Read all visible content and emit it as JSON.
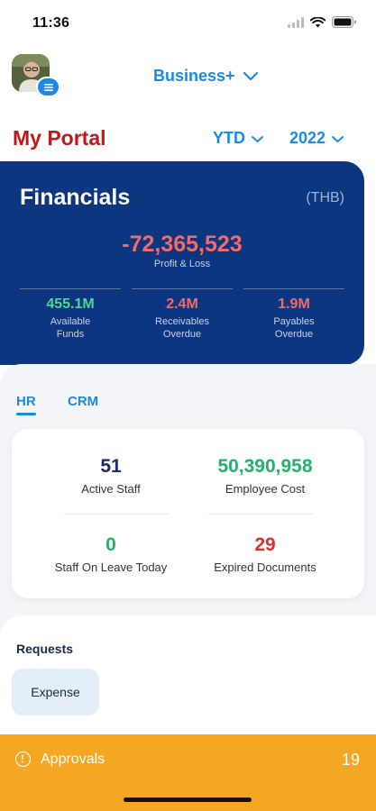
{
  "status_bar": {
    "time": "11:36"
  },
  "header": {
    "business_label": "Business+",
    "portal_title": "My Portal",
    "period": "YTD",
    "year": "2022"
  },
  "financials": {
    "title": "Financials",
    "currency": "(THB)",
    "profit_loss": {
      "value": "-72,365,523",
      "label": "Profit & Loss"
    },
    "metrics": [
      {
        "value": "455.1M",
        "label_line1": "Available",
        "label_line2": "Funds",
        "color": "#4ad991"
      },
      {
        "value": "2.4M",
        "label_line1": "Receivables",
        "label_line2": "Overdue",
        "color": "#f26a6a"
      },
      {
        "value": "1.9M",
        "label_line1": "Payables",
        "label_line2": "Overdue",
        "color": "#f26a6a"
      }
    ]
  },
  "tabs": [
    {
      "label": "HR",
      "active": true
    },
    {
      "label": "CRM",
      "active": false
    }
  ],
  "hr": {
    "metrics": [
      {
        "value": "51",
        "label": "Active Staff",
        "color": "#1b2a6b"
      },
      {
        "value": "50,390,958",
        "label": "Employee Cost",
        "color": "#23b26d"
      },
      {
        "value": "0",
        "label": "Staff On Leave Today",
        "color": "#23b26d"
      },
      {
        "value": "29",
        "label": "Expired Documents",
        "color": "#e02f2f"
      }
    ]
  },
  "requests": {
    "title": "Requests",
    "items": [
      {
        "label": "Expense"
      }
    ]
  },
  "approvals": {
    "label": "Approvals",
    "count": "19"
  },
  "colors": {
    "brand_blue": "#1e88e5",
    "navy": "#0d3680",
    "portal_red": "#c0171c",
    "approvals_orange": "#f5a623"
  }
}
